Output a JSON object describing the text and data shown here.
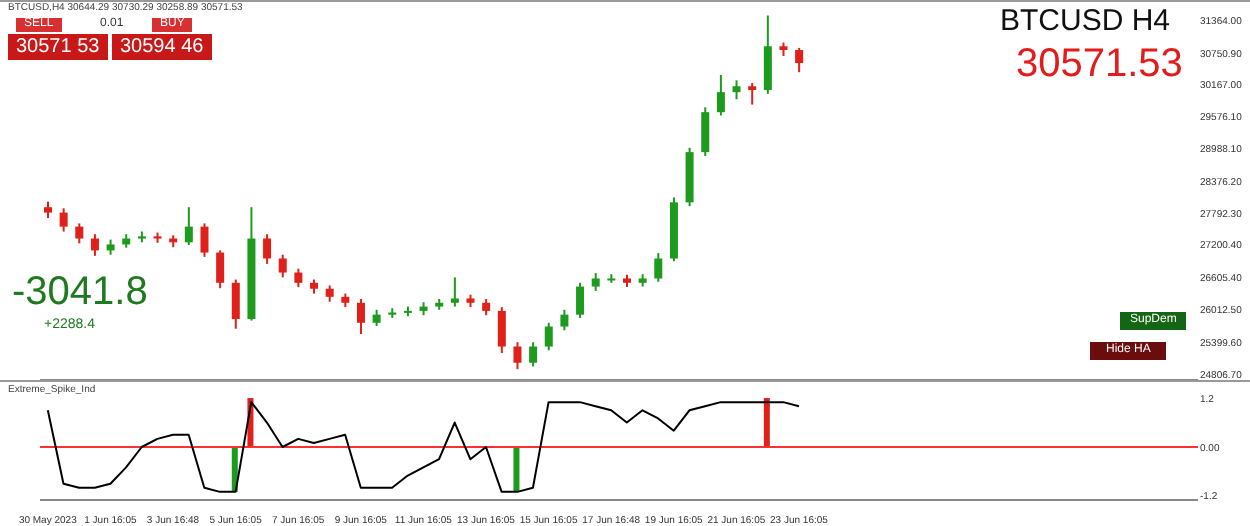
{
  "chart_data": [
    {
      "type": "candlestick",
      "title": "BTCUSD,H4 30644.29 30730.29 30258.89 30571.53",
      "categories": [
        null,
        null,
        null,
        null,
        null,
        null,
        null,
        null,
        null,
        null,
        null,
        null,
        null,
        null,
        null,
        null,
        null,
        null,
        null,
        null,
        null,
        null,
        null,
        null,
        null,
        null,
        null,
        null,
        null,
        null,
        null,
        null,
        null,
        null,
        null,
        null,
        null,
        null,
        null,
        null,
        null,
        null,
        null,
        null,
        null,
        null,
        null,
        null,
        null,
        null,
        null,
        null,
        null,
        null,
        null,
        null,
        null,
        null,
        null,
        null,
        null,
        null,
        null,
        null,
        null,
        null,
        null,
        null,
        null,
        null,
        null,
        null,
        null,
        null
      ],
      "ohlc": [
        [
          27900,
          28000,
          27700,
          27800
        ],
        [
          27800,
          27880,
          27450,
          27540
        ],
        [
          27540,
          27600,
          27230,
          27320
        ],
        [
          27320,
          27400,
          27000,
          27100
        ],
        [
          27100,
          27300,
          27020,
          27210
        ],
        [
          27210,
          27400,
          27150,
          27320
        ],
        [
          27320,
          27450,
          27250,
          27360
        ],
        [
          27360,
          27430,
          27240,
          27320
        ],
        [
          27320,
          27380,
          27160,
          27250
        ],
        [
          27250,
          27900,
          27200,
          27540
        ],
        [
          27540,
          27600,
          26980,
          27060
        ],
        [
          27060,
          27100,
          26400,
          26500
        ],
        [
          26500,
          26560,
          25650,
          25830
        ],
        [
          25830,
          27900,
          25800,
          27320
        ],
        [
          27320,
          27400,
          26850,
          26950
        ],
        [
          26950,
          27020,
          26600,
          26690
        ],
        [
          26690,
          26760,
          26420,
          26500
        ],
        [
          26500,
          26560,
          26300,
          26390
        ],
        [
          26390,
          26450,
          26150,
          26240
        ],
        [
          26240,
          26300,
          26050,
          26130
        ],
        [
          26130,
          26200,
          25550,
          25760
        ],
        [
          25760,
          26000,
          25700,
          25910
        ],
        [
          25910,
          26030,
          25850,
          25950
        ],
        [
          25950,
          26060,
          25880,
          25980
        ],
        [
          25980,
          26140,
          25900,
          26060
        ],
        [
          26060,
          26200,
          26000,
          26130
        ],
        [
          26130,
          26600,
          26060,
          26210
        ],
        [
          26210,
          26280,
          26050,
          26130
        ],
        [
          26130,
          26200,
          25900,
          25980
        ],
        [
          25980,
          26050,
          25200,
          25320
        ],
        [
          25320,
          25400,
          24900,
          25020
        ],
        [
          25020,
          25400,
          24950,
          25320
        ],
        [
          25320,
          25760,
          25250,
          25690
        ],
        [
          25690,
          26000,
          25620,
          25910
        ],
        [
          25910,
          26500,
          25850,
          26430
        ],
        [
          26430,
          26680,
          26350,
          26580
        ],
        [
          26580,
          26660,
          26500,
          26580
        ],
        [
          26580,
          26650,
          26420,
          26500
        ],
        [
          26500,
          26660,
          26430,
          26580
        ],
        [
          26580,
          27050,
          26520,
          26950
        ],
        [
          26950,
          28080,
          26900,
          27990
        ],
        [
          27990,
          29000,
          27920,
          28920
        ],
        [
          28920,
          29750,
          28850,
          29660
        ],
        [
          29660,
          30350,
          29600,
          30030
        ],
        [
          30030,
          30250,
          29900,
          30140
        ],
        [
          30140,
          30200,
          29800,
          30070
        ],
        [
          30070,
          31450,
          30000,
          30880
        ],
        [
          30880,
          30950,
          30700,
          30810
        ],
        [
          30810,
          30850,
          30400,
          30570
        ],
        null,
        null,
        null,
        null,
        null,
        null,
        null,
        null,
        null,
        null,
        null,
        null,
        null,
        null,
        null,
        null,
        null,
        null,
        null,
        null,
        null,
        null,
        null,
        null,
        null
      ],
      "colors": [
        "#e0201a",
        "#e0201a",
        "#e0201a",
        "#e0201a",
        "#1e9b1e",
        "#1e9b1e",
        "#1e9b1e",
        "#e0201a",
        "#e0201a",
        "#1e9b1e",
        "#e0201a",
        "#e0201a",
        "#e0201a",
        "#1e9b1e",
        "#e0201a",
        "#e0201a",
        "#e0201a",
        "#e0201a",
        "#e0201a",
        "#e0201a",
        "#e0201a",
        "#1e9b1e",
        "#1e9b1e",
        "#1e9b1e",
        "#1e9b1e",
        "#1e9b1e",
        "#1e9b1e",
        "#e0201a",
        "#e0201a",
        "#e0201a",
        "#e0201a",
        "#1e9b1e",
        "#1e9b1e",
        "#1e9b1e",
        "#1e9b1e",
        "#1e9b1e",
        "#1e9b1e",
        "#e0201a",
        "#1e9b1e",
        "#1e9b1e",
        "#1e9b1e",
        "#1e9b1e",
        "#1e9b1e",
        "#1e9b1e",
        "#1e9b1e",
        "#e0201a",
        "#1e9b1e",
        "#e0201a",
        "#e0201a",
        null,
        null,
        null,
        null,
        null,
        null,
        null,
        null,
        null,
        null,
        null,
        null,
        null,
        null,
        null,
        null,
        null,
        null,
        null,
        null,
        null,
        null,
        null,
        null,
        null
      ],
      "ylim": [
        24700,
        31700
      ],
      "yticks": [
        {
          "value": 31364,
          "label": "31364.00"
        },
        {
          "value": 30750.9,
          "label": "30750.90"
        },
        {
          "value": 30167,
          "label": "30167.00"
        },
        {
          "value": 29576.1,
          "label": "29576.10"
        },
        {
          "value": 28988.1,
          "label": "28988.10"
        },
        {
          "value": 28376.2,
          "label": "28376.20"
        },
        {
          "value": 27792.3,
          "label": "27792.30"
        },
        {
          "value": 27200.4,
          "label": "27200.40"
        },
        {
          "value": 26605.4,
          "label": "26605.40"
        },
        {
          "value": 26012.5,
          "label": "26012.50"
        },
        {
          "value": 25399.6,
          "label": "25399.60"
        },
        {
          "value": 24806.7,
          "label": "24806.70"
        }
      ],
      "tick_labels": "y",
      "annotations": [
        "BTCUSD H4",
        "30571.53",
        "-3041.8",
        "+2288.4",
        "SupDem",
        "Hide HA",
        "SELL",
        "0.01",
        "BUY",
        "30571 53",
        "30594 46"
      ]
    },
    {
      "type": "line",
      "title": "Extreme_Spike_Ind",
      "categories": [
        "30 May 2023",
        null,
        null,
        null,
        "1 Jun 16:05",
        null,
        null,
        null,
        "3 Jun 16:48",
        null,
        null,
        null,
        "5 Jun 16:05",
        null,
        null,
        null,
        "7 Jun 16:05",
        null,
        null,
        null,
        "9 Jun 16:05",
        null,
        null,
        null,
        "11 Jun 16:05",
        null,
        null,
        null,
        "13 Jun 16:05",
        null,
        null,
        null,
        "15 Jun 16:05",
        null,
        null,
        null,
        "17 Jun 16:48",
        null,
        null,
        null,
        "19 Jun 16:05",
        null,
        null,
        null,
        "21 Jun 16:05",
        null,
        null,
        null,
        "23 Jun 16:05",
        null,
        null,
        null,
        null,
        null,
        null,
        null,
        null,
        null,
        null,
        null,
        null,
        null,
        null,
        null,
        null,
        null,
        null,
        null,
        null,
        null,
        null,
        null,
        null,
        null
      ],
      "series": [
        {
          "type": "line",
          "color": "#000000",
          "values": [
            0.9,
            -0.9,
            -1.0,
            -1.0,
            -0.9,
            -0.5,
            0.0,
            0.2,
            0.3,
            0.3,
            -1.0,
            -1.1,
            -1.1,
            1.1,
            0.6,
            0.0,
            0.2,
            0.1,
            0.2,
            0.3,
            -1.0,
            -1.0,
            -1.0,
            -0.7,
            -0.5,
            -0.3,
            0.6,
            -0.3,
            0.0,
            -1.1,
            -1.1,
            -1.0,
            1.1,
            1.1,
            1.1,
            1.0,
            0.9,
            0.6,
            0.9,
            0.7,
            0.4,
            0.9,
            1.0,
            1.1,
            1.1,
            1.1,
            1.1,
            1.1,
            1.0,
            null,
            null,
            null,
            null,
            null,
            null,
            null,
            null,
            null,
            null,
            null,
            null,
            null,
            null,
            null,
            null,
            null,
            null,
            null,
            null,
            null,
            null,
            null,
            null,
            null
          ]
        },
        {
          "type": "bar",
          "colors": [
            null,
            null,
            null,
            null,
            null,
            null,
            null,
            null,
            null,
            null,
            null,
            null,
            "#1e9b1e",
            "#e0201a",
            null,
            null,
            null,
            null,
            null,
            null,
            null,
            null,
            null,
            null,
            null,
            null,
            null,
            null,
            null,
            null,
            "#1e9b1e",
            null,
            null,
            null,
            null,
            null,
            null,
            null,
            null,
            null,
            null,
            null,
            null,
            null,
            null,
            null,
            "#e0201a",
            null,
            null,
            null,
            null,
            null,
            null,
            null,
            null,
            null,
            null,
            null,
            null,
            null,
            null,
            null,
            null,
            null,
            null,
            null,
            null,
            null,
            null,
            null,
            null,
            null,
            null,
            null
          ],
          "values": [
            null,
            null,
            null,
            null,
            null,
            null,
            null,
            null,
            null,
            null,
            null,
            null,
            -1.1,
            1.2,
            null,
            null,
            null,
            null,
            null,
            null,
            null,
            null,
            null,
            null,
            null,
            null,
            null,
            null,
            null,
            null,
            -1.1,
            null,
            null,
            null,
            null,
            null,
            null,
            null,
            null,
            null,
            null,
            null,
            null,
            null,
            null,
            null,
            1.2,
            null,
            null,
            null,
            null,
            null,
            null,
            null,
            null,
            null,
            null,
            null,
            null,
            null,
            null,
            null,
            null,
            null,
            null,
            null,
            null,
            null,
            null,
            null,
            null,
            null,
            null,
            null
          ]
        }
      ],
      "ylim": [
        -1.3,
        1.3
      ],
      "yticks": [
        1.2,
        {
          "value": 0,
          "label": "0.00"
        },
        -1.2
      ],
      "ref_lines": [
        {
          "axis": "y",
          "value": 0,
          "color": "#ff3030"
        }
      ]
    }
  ]
}
